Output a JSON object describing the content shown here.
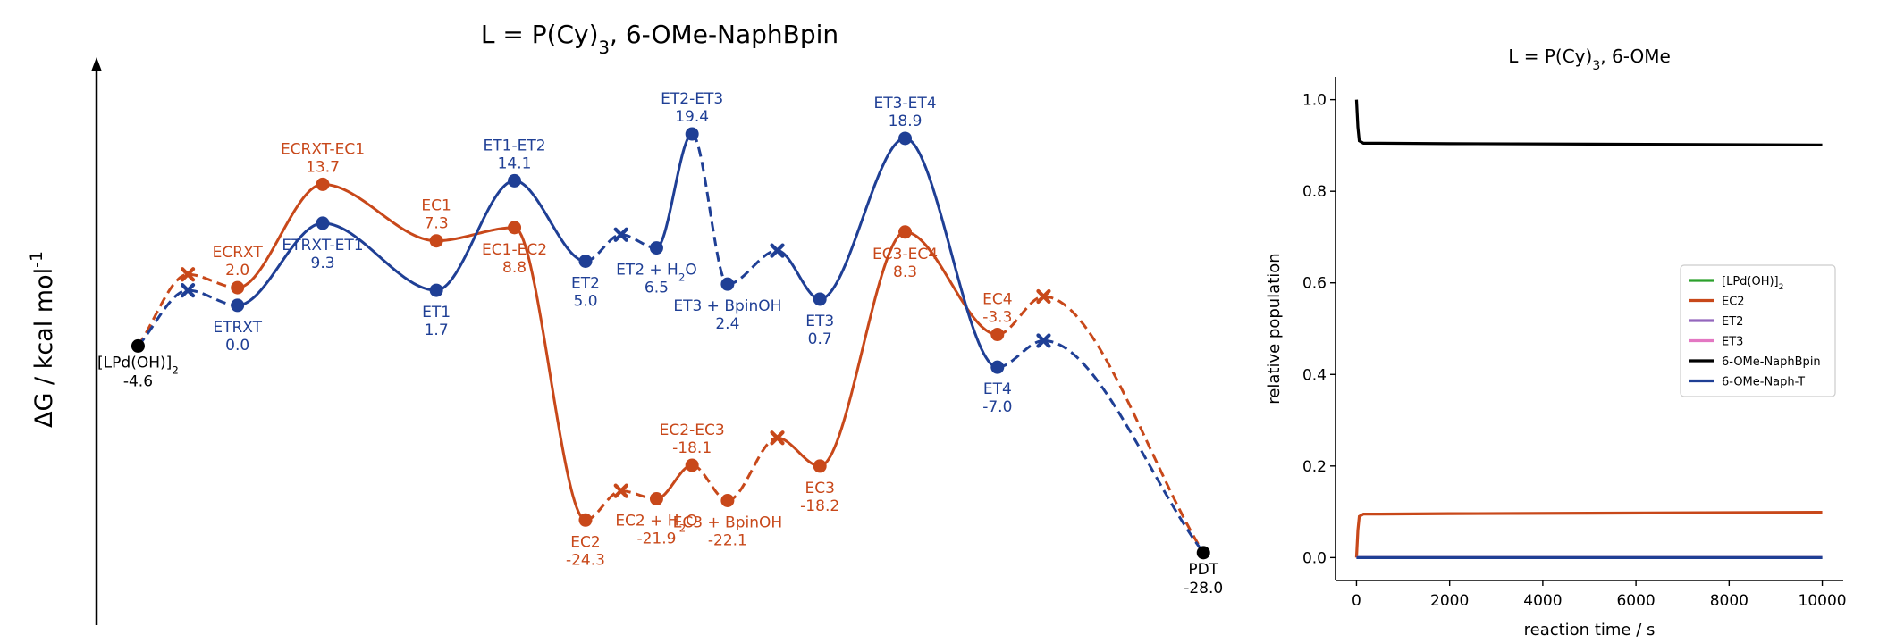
{
  "chart_data": [
    {
      "type": "line",
      "title": {
        "pre": "L = P(Cy)",
        "sub": "3",
        "post": ", 6-OMe-NaphBpin"
      },
      "ylabel": {
        "pre": "ΔG / kcal mol",
        "sup": "-1"
      },
      "colors": {
        "EC": "#C8481A",
        "ET": "#1F3F95",
        "common": "#000000"
      },
      "common_points": [
        {
          "id": "start",
          "x": 1.0,
          "y": -4.6,
          "label_html": "[LPd(OH)]<tspan class='sub'>2</tspan>",
          "value": "-4.6"
        },
        {
          "id": "pdt",
          "x": 16.0,
          "y": -28.0,
          "label": "PDT",
          "value": "-28.0"
        }
      ],
      "series": [
        {
          "name": "EC",
          "points": [
            {
              "x": 1.0,
              "y": -4.6,
              "kind": "common"
            },
            {
              "x": 1.7,
              "y": 3.5,
              "kind": "x"
            },
            {
              "x": 2.4,
              "y": 2.0,
              "kind": "min",
              "label": "ECRXT",
              "value": "2.0",
              "lpos": "above"
            },
            {
              "x": 3.6,
              "y": 13.7,
              "kind": "ts",
              "label": "ECRXT-EC1",
              "value": "13.7",
              "lpos": "above"
            },
            {
              "x": 5.2,
              "y": 7.3,
              "kind": "min",
              "label": "EC1",
              "value": "7.3",
              "lpos": "above"
            },
            {
              "x": 6.3,
              "y": 8.8,
              "kind": "ts",
              "label": "EC1-EC2",
              "value": "8.8",
              "lpos": "below"
            },
            {
              "x": 7.3,
              "y": -24.3,
              "kind": "min",
              "label": "EC2",
              "value": "-24.3",
              "lpos": "below"
            },
            {
              "x": 7.8,
              "y": -21.0,
              "kind": "x"
            },
            {
              "x": 8.3,
              "y": -21.9,
              "kind": "min",
              "label_html": "EC2 + H<tspan class='sub'>2</tspan>O",
              "value": "-21.9",
              "lpos": "below"
            },
            {
              "x": 8.8,
              "y": -18.1,
              "kind": "ts",
              "label": "EC2-EC3",
              "value": "-18.1",
              "lpos": "above"
            },
            {
              "x": 9.3,
              "y": -22.1,
              "kind": "min",
              "label": "EC3 + BpinOH",
              "value": "-22.1",
              "lpos": "below"
            },
            {
              "x": 10.0,
              "y": -15.0,
              "kind": "x"
            },
            {
              "x": 10.6,
              "y": -18.2,
              "kind": "min",
              "label": "EC3",
              "value": "-18.2",
              "lpos": "below"
            },
            {
              "x": 11.8,
              "y": 8.3,
              "kind": "ts",
              "label": "EC3-EC4",
              "value": "8.3",
              "lpos": "below"
            },
            {
              "x": 13.1,
              "y": -3.3,
              "kind": "min",
              "label": "EC4",
              "value": "-3.3",
              "lpos": "above"
            },
            {
              "x": 13.75,
              "y": 1.0,
              "kind": "x"
            },
            {
              "x": 16.0,
              "y": -28.0,
              "kind": "common"
            }
          ],
          "dashed_segments": [
            0,
            1,
            6,
            7,
            9,
            10,
            14,
            15
          ]
        },
        {
          "name": "ET",
          "points": [
            {
              "x": 1.0,
              "y": -4.6,
              "kind": "common"
            },
            {
              "x": 1.7,
              "y": 1.7,
              "kind": "x"
            },
            {
              "x": 2.4,
              "y": 0.0,
              "kind": "min",
              "label": "ETRXT",
              "value": "0.0",
              "lpos": "below"
            },
            {
              "x": 3.6,
              "y": 9.3,
              "kind": "ts",
              "label": "ETRXT-ET1",
              "value": "9.3",
              "lpos": "below"
            },
            {
              "x": 5.2,
              "y": 1.7,
              "kind": "min",
              "label": "ET1",
              "value": "1.7",
              "lpos": "below"
            },
            {
              "x": 6.3,
              "y": 14.1,
              "kind": "ts",
              "label": "ET1-ET2",
              "value": "14.1",
              "lpos": "above"
            },
            {
              "x": 7.3,
              "y": 5.0,
              "kind": "min",
              "label": "ET2",
              "value": "5.0",
              "lpos": "below"
            },
            {
              "x": 7.8,
              "y": 8.0,
              "kind": "x"
            },
            {
              "x": 8.3,
              "y": 6.5,
              "kind": "min",
              "label_html": "ET2 + H<tspan class='sub'>2</tspan>O",
              "value": "6.5",
              "lpos": "below"
            },
            {
              "x": 8.8,
              "y": 19.4,
              "kind": "ts",
              "label": "ET2-ET3",
              "value": "19.4",
              "lpos": "above"
            },
            {
              "x": 9.3,
              "y": 2.4,
              "kind": "min",
              "label": "ET3 + BpinOH",
              "value": "2.4",
              "lpos": "below"
            },
            {
              "x": 10.0,
              "y": 6.2,
              "kind": "x"
            },
            {
              "x": 10.6,
              "y": 0.7,
              "kind": "min",
              "label": "ET3",
              "value": "0.7",
              "lpos": "below"
            },
            {
              "x": 11.8,
              "y": 18.9,
              "kind": "ts",
              "label": "ET3-ET4",
              "value": "18.9",
              "lpos": "above"
            },
            {
              "x": 13.1,
              "y": -7.0,
              "kind": "min",
              "label": "ET4",
              "value": "-7.0",
              "lpos": "below"
            },
            {
              "x": 13.75,
              "y": -4.0,
              "kind": "x"
            },
            {
              "x": 16.0,
              "y": -28.0,
              "kind": "common"
            }
          ],
          "dashed_segments": [
            0,
            1,
            6,
            7,
            9,
            10,
            14,
            15
          ]
        }
      ],
      "xlim": [
        0.0,
        16.4
      ],
      "ylim": [
        -36.0,
        28.5
      ]
    },
    {
      "type": "line",
      "title": {
        "pre": "L = P(Cy)",
        "sub": "3",
        "post": ", 6-OMe"
      },
      "xlabel": "reaction time / s",
      "ylabel": "relative population",
      "xlim": [
        -450,
        10450
      ],
      "ylim": [
        -0.05,
        1.05
      ],
      "xticks": [
        0,
        2000,
        4000,
        6000,
        8000,
        10000
      ],
      "xtick_labels": [
        "0",
        "2000",
        "4000",
        "6000",
        "8000",
        "10000"
      ],
      "yticks": [
        0.0,
        0.2,
        0.4,
        0.6,
        0.8,
        1.0
      ],
      "ytick_labels": [
        "0.0",
        "0.2",
        "0.4",
        "0.6",
        "0.8",
        "1.0"
      ],
      "legend_position": "center-right",
      "series": [
        {
          "name": "[LPd(OH)]",
          "name_sub": "2",
          "color": "#2CA02C",
          "x": [
            0,
            10000
          ],
          "y": [
            0.0,
            0.0
          ]
        },
        {
          "name": "EC2",
          "color": "#C8481A",
          "x": [
            0,
            30,
            60,
            150,
            500,
            2000,
            5000,
            10000
          ],
          "y": [
            0.0,
            0.06,
            0.09,
            0.095,
            0.095,
            0.096,
            0.097,
            0.099
          ]
        },
        {
          "name": "ET2",
          "color": "#9467BD",
          "x": [
            0,
            10000
          ],
          "y": [
            0.0,
            0.0
          ]
        },
        {
          "name": "ET3",
          "color": "#E377C2",
          "x": [
            0,
            10000
          ],
          "y": [
            0.0,
            0.0
          ]
        },
        {
          "name": "6-OMe-NaphBpin",
          "color": "#000000",
          "x": [
            0,
            30,
            60,
            150,
            500,
            2000,
            5000,
            10000
          ],
          "y": [
            1.0,
            0.94,
            0.91,
            0.905,
            0.905,
            0.904,
            0.903,
            0.901
          ]
        },
        {
          "name": "6-OMe-Naph-T",
          "color": "#1F3F95",
          "x": [
            0,
            10000
          ],
          "y": [
            0.0,
            0.0
          ]
        }
      ]
    }
  ]
}
